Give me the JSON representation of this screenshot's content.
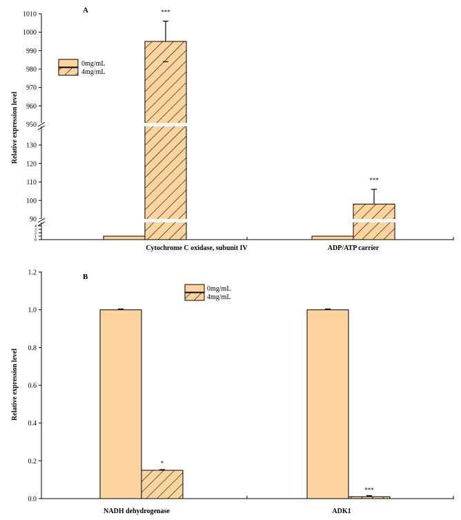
{
  "chart_data": [
    {
      "type": "bar",
      "panel_label": "A",
      "categories": [
        "Cytochrome C oxidase, subunit IV",
        "ADP/ATP carrier"
      ],
      "series": [
        {
          "name": "0mg/mL",
          "values": [
            1,
            1
          ],
          "errors": [
            0.1,
            0.1
          ]
        },
        {
          "name": "4mg/mL",
          "values": [
            995,
            98
          ],
          "errors": [
            11,
            8
          ]
        }
      ],
      "significance": [
        [
          "",
          "***"
        ],
        [
          "",
          "***"
        ]
      ],
      "ylabel": "Relative expression level",
      "axis_breaks": [
        [
          5,
          90
        ],
        [
          130,
          950
        ]
      ],
      "ylim": [
        0,
        1010
      ],
      "yticks": [
        {
          "value": 0,
          "label": "0"
        },
        {
          "value": 1,
          "label": "1"
        },
        {
          "value": 2,
          "label": "2"
        },
        {
          "value": 3,
          "label": "3"
        },
        {
          "value": 4,
          "label": "4"
        },
        {
          "value": 90,
          "label": "90"
        },
        {
          "value": 100,
          "label": "100"
        },
        {
          "value": 110,
          "label": "110"
        },
        {
          "value": 120,
          "label": "120"
        },
        {
          "value": 130,
          "label": "130"
        },
        {
          "value": 950,
          "label": "950"
        },
        {
          "value": 960,
          "label": "960"
        },
        {
          "value": 970,
          "label": "970"
        },
        {
          "value": 980,
          "label": "980"
        },
        {
          "value": 990,
          "label": "990"
        },
        {
          "value": 1000,
          "label": "1000"
        },
        {
          "value": 1010,
          "label": "1010"
        }
      ],
      "legend": [
        "0mg/mL",
        "4mg/mL"
      ]
    },
    {
      "type": "bar",
      "panel_label": "B",
      "categories": [
        "NADH dehydrogenase",
        "ADK1"
      ],
      "series": [
        {
          "name": "0mg/mL",
          "values": [
            1.0,
            1.0
          ],
          "errors": [
            0.004,
            0.004
          ]
        },
        {
          "name": "4mg/mL",
          "values": [
            0.15,
            0.01
          ],
          "errors": [
            0.003,
            0.005
          ]
        }
      ],
      "significance": [
        [
          "",
          "*"
        ],
        [
          "",
          "***"
        ]
      ],
      "ylabel": "Relative expression level",
      "ylim": [
        0,
        1.2
      ],
      "yticks": [
        {
          "value": 0,
          "label": "0.0"
        },
        {
          "value": 0.2,
          "label": "0.2"
        },
        {
          "value": 0.4,
          "label": "0.4"
        },
        {
          "value": 0.6,
          "label": "0.6"
        },
        {
          "value": 0.8,
          "label": "0.8"
        },
        {
          "value": 1.0,
          "label": "1.0"
        },
        {
          "value": 1.2,
          "label": "1.2"
        }
      ],
      "legend": [
        "0mg/mL",
        "4mg/mL"
      ]
    }
  ],
  "colors": {
    "bar_fill": "#fdd49e",
    "stroke": "#000000",
    "background": "#ffffff"
  }
}
